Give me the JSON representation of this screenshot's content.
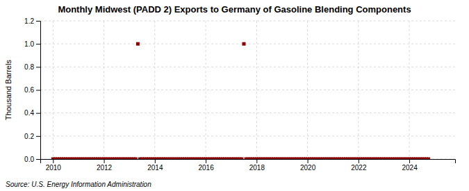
{
  "chart_data": {
    "type": "scatter",
    "title": "Monthly Midwest (PADD 2) Exports to Germany of Gasoline Blending Components",
    "ylabel": "Thousand Barrels",
    "annotations": [
      "Source: U.S. Energy Information Administration"
    ],
    "color": "#8B0000",
    "marker": "square",
    "grid": true,
    "xlim": [
      2009.5,
      2025.8
    ],
    "ylim": [
      0.0,
      1.2
    ],
    "xticks": [
      2010,
      2012,
      2014,
      2016,
      2018,
      2020,
      2022,
      2024
    ],
    "yticks": [
      {
        "value": 0.0,
        "label": "0.0"
      },
      0.2,
      0.4,
      0.6,
      0.8,
      {
        "value": 1.0,
        "label": "1.0"
      },
      1.2
    ],
    "x": [
      2010.0,
      2010.083,
      2010.167,
      2010.25,
      2010.333,
      2010.417,
      2010.5,
      2010.583,
      2010.667,
      2010.75,
      2010.833,
      2010.917,
      2011.0,
      2011.083,
      2011.167,
      2011.25,
      2011.333,
      2011.417,
      2011.5,
      2011.583,
      2011.667,
      2011.75,
      2011.833,
      2011.917,
      2012.0,
      2012.083,
      2012.167,
      2012.25,
      2012.333,
      2012.417,
      2012.5,
      2012.583,
      2012.667,
      2012.75,
      2012.833,
      2012.917,
      2013.0,
      2013.083,
      2013.167,
      2013.25,
      2013.333,
      2013.417,
      2013.5,
      2013.583,
      2013.667,
      2013.75,
      2013.833,
      2013.917,
      2014.0,
      2014.083,
      2014.167,
      2014.25,
      2014.333,
      2014.417,
      2014.5,
      2014.583,
      2014.667,
      2014.75,
      2014.833,
      2014.917,
      2015.0,
      2015.083,
      2015.167,
      2015.25,
      2015.333,
      2015.417,
      2015.5,
      2015.583,
      2015.667,
      2015.75,
      2015.833,
      2015.917,
      2016.0,
      2016.083,
      2016.167,
      2016.25,
      2016.333,
      2016.417,
      2016.5,
      2016.583,
      2016.667,
      2016.75,
      2016.833,
      2016.917,
      2017.0,
      2017.083,
      2017.167,
      2017.25,
      2017.333,
      2017.417,
      2017.5,
      2017.583,
      2017.667,
      2017.75,
      2017.833,
      2017.917,
      2018.0,
      2018.083,
      2018.167,
      2018.25,
      2018.333,
      2018.417,
      2018.5,
      2018.583,
      2018.667,
      2018.75,
      2018.833,
      2018.917,
      2019.0,
      2019.083,
      2019.167,
      2019.25,
      2019.333,
      2019.417,
      2019.5,
      2019.583,
      2019.667,
      2019.75,
      2019.833,
      2019.917,
      2020.0,
      2020.083,
      2020.167,
      2020.25,
      2020.333,
      2020.417,
      2020.5,
      2020.583,
      2020.667,
      2020.75,
      2020.833,
      2020.917,
      2021.0,
      2021.083,
      2021.167,
      2021.25,
      2021.333,
      2021.417,
      2021.5,
      2021.583,
      2021.667,
      2021.75,
      2021.833,
      2021.917,
      2022.0,
      2022.083,
      2022.167,
      2022.25,
      2022.333,
      2022.417,
      2022.5,
      2022.583,
      2022.667,
      2022.75,
      2022.833,
      2022.917,
      2023.0,
      2023.083,
      2023.167,
      2023.25,
      2023.333,
      2023.417,
      2023.5,
      2023.583,
      2023.667,
      2023.75,
      2023.833,
      2023.917,
      2024.0,
      2024.083,
      2024.167,
      2024.25,
      2024.333,
      2024.417,
      2024.5,
      2024.583,
      2024.667,
      2024.75
    ],
    "values": [
      0.0,
      0.0,
      0.0,
      0.0,
      0.0,
      0.0,
      0.0,
      0.0,
      0.0,
      0.0,
      0.0,
      0.0,
      0.0,
      0.0,
      0.0,
      0.0,
      0.0,
      0.0,
      0.0,
      0.0,
      0.0,
      0.0,
      0.0,
      0.0,
      0.0,
      0.0,
      0.0,
      0.0,
      0.0,
      0.0,
      0.0,
      0.0,
      0.0,
      0.0,
      0.0,
      0.0,
      0.0,
      0.0,
      0.0,
      0.0,
      1.0,
      0.0,
      0.0,
      0.0,
      0.0,
      0.0,
      0.0,
      0.0,
      0.0,
      0.0,
      0.0,
      0.0,
      0.0,
      0.0,
      0.0,
      0.0,
      0.0,
      0.0,
      0.0,
      0.0,
      0.0,
      0.0,
      0.0,
      0.0,
      0.0,
      0.0,
      0.0,
      0.0,
      0.0,
      0.0,
      0.0,
      0.0,
      0.0,
      0.0,
      0.0,
      0.0,
      0.0,
      0.0,
      0.0,
      0.0,
      0.0,
      0.0,
      0.0,
      0.0,
      0.0,
      0.0,
      0.0,
      0.0,
      0.0,
      0.0,
      1.0,
      0.0,
      0.0,
      0.0,
      0.0,
      0.0,
      0.0,
      0.0,
      0.0,
      0.0,
      0.0,
      0.0,
      0.0,
      0.0,
      0.0,
      0.0,
      0.0,
      0.0,
      0.0,
      0.0,
      0.0,
      0.0,
      0.0,
      0.0,
      0.0,
      0.0,
      0.0,
      0.0,
      0.0,
      0.0,
      0.0,
      0.0,
      0.0,
      0.0,
      0.0,
      0.0,
      0.0,
      0.0,
      0.0,
      0.0,
      0.0,
      0.0,
      0.0,
      0.0,
      0.0,
      0.0,
      0.0,
      0.0,
      0.0,
      0.0,
      0.0,
      0.0,
      0.0,
      0.0,
      0.0,
      0.0,
      0.0,
      0.0,
      0.0,
      0.0,
      0.0,
      0.0,
      0.0,
      0.0,
      0.0,
      0.0,
      0.0,
      0.0,
      0.0,
      0.0,
      0.0,
      0.0,
      0.0,
      0.0,
      0.0,
      0.0,
      0.0,
      0.0,
      0.0,
      0.0,
      0.0,
      0.0,
      0.0,
      0.0,
      0.0,
      0.0,
      0.0,
      0.0
    ]
  }
}
